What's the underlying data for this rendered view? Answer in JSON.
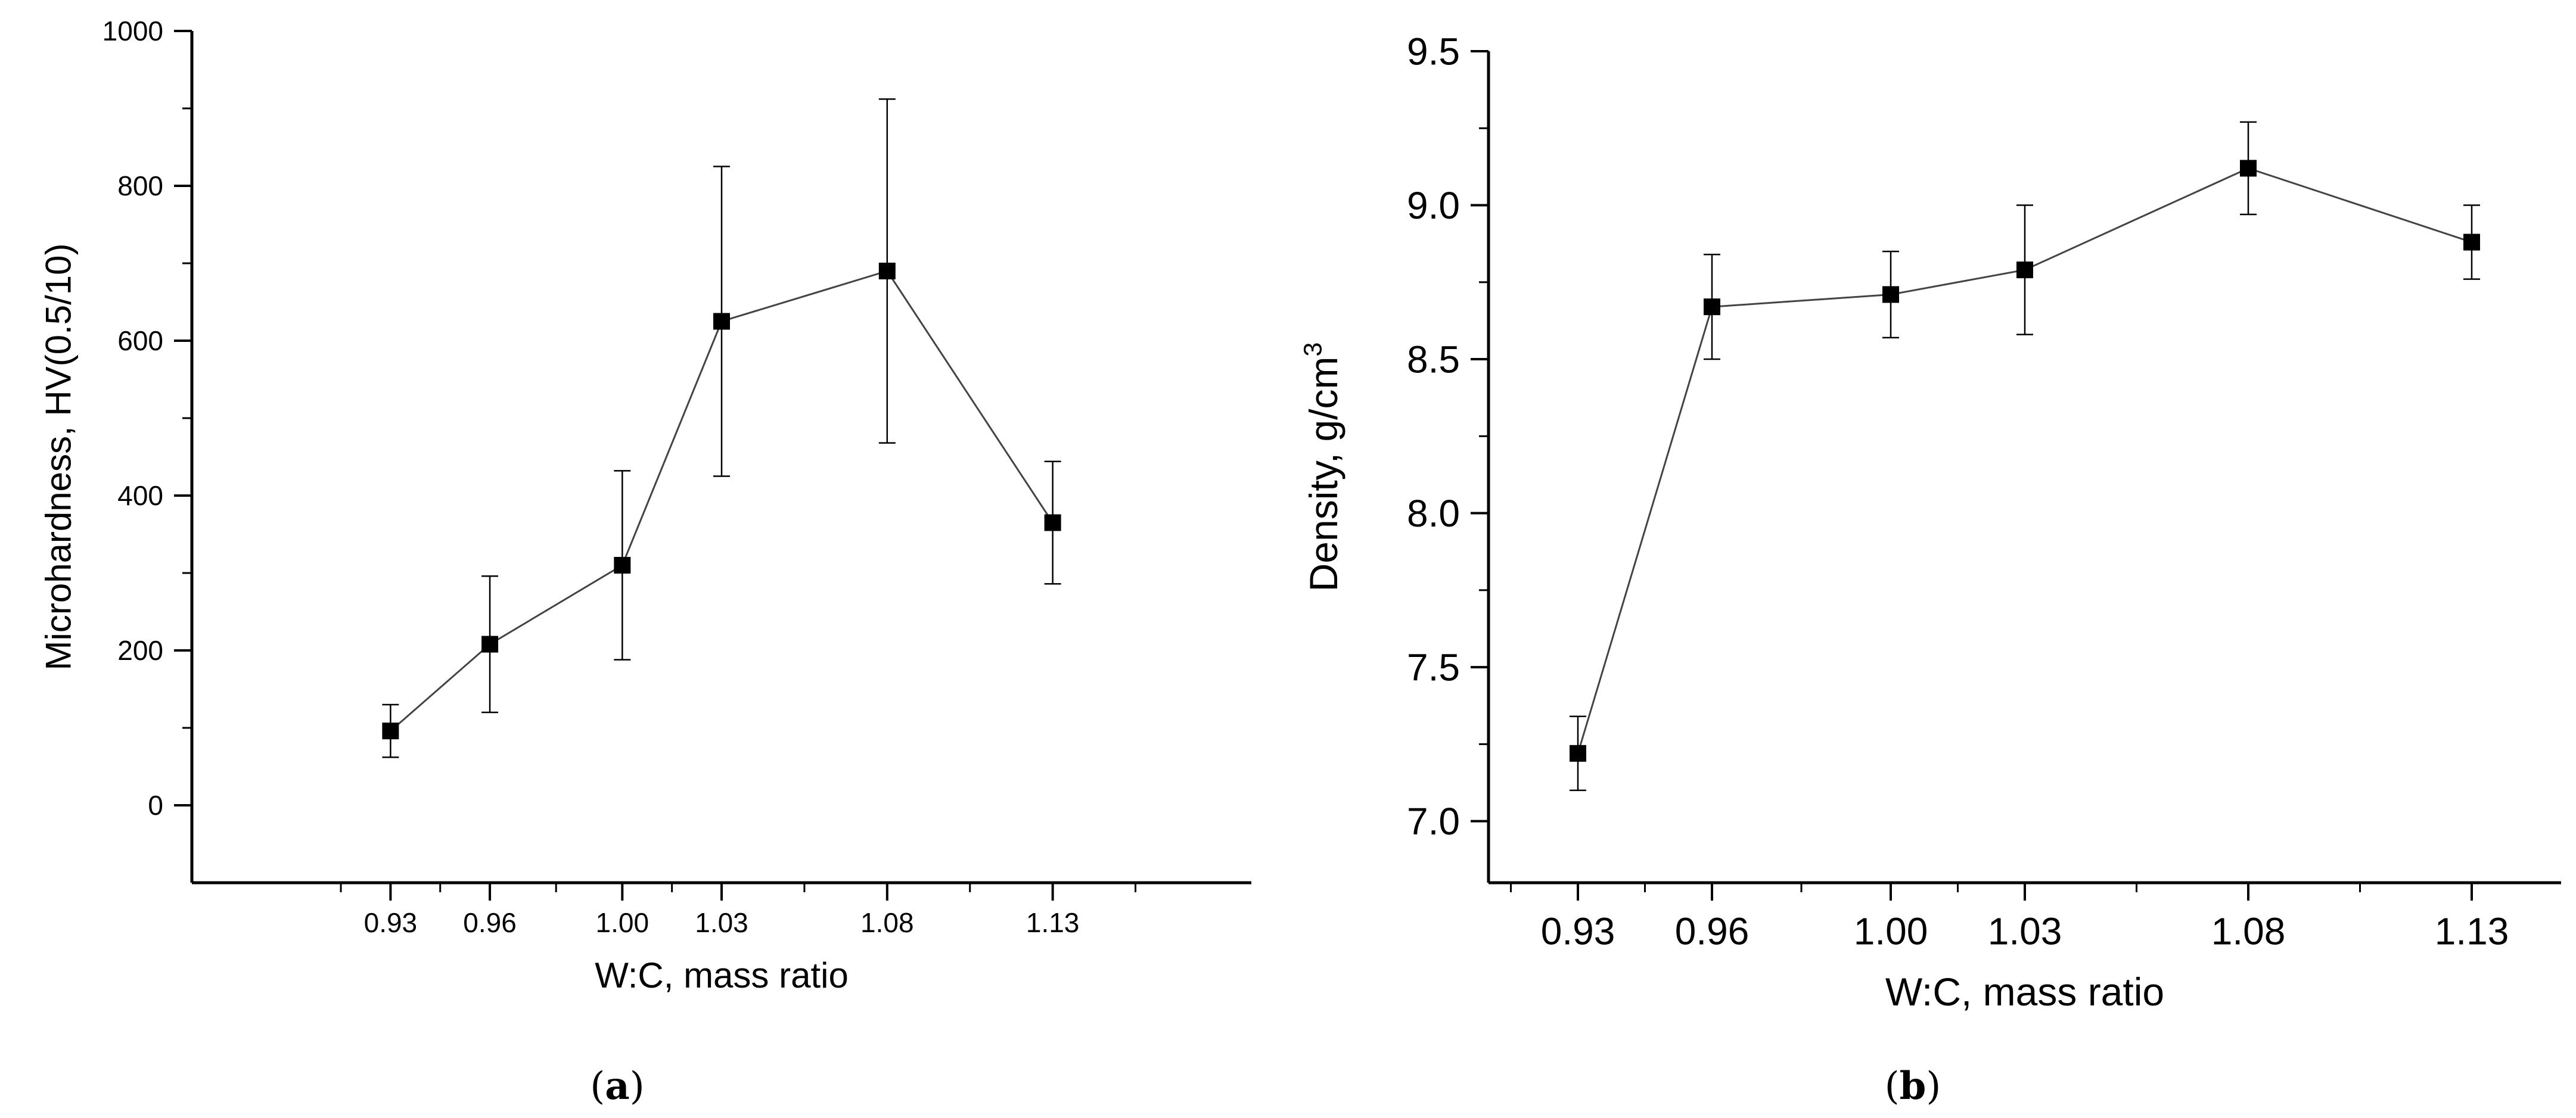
{
  "chart_data": [
    {
      "type": "line",
      "panel_label": "a",
      "xlabel": "W:C, mass ratio",
      "ylabel": "Microhardness, HV(0.5/10)",
      "categories": [
        "0.93",
        "0.96",
        "1.00",
        "1.03",
        "1.08",
        "1.13"
      ],
      "x": [
        0.93,
        0.96,
        1.0,
        1.03,
        1.08,
        1.13
      ],
      "values": [
        96,
        208,
        310,
        625,
        690,
        365
      ],
      "error": [
        34,
        88,
        122,
        200,
        222,
        79
      ],
      "xlim": [
        0.87,
        1.19
      ],
      "ylim": [
        -100,
        1000
      ],
      "yticks": [
        0,
        200,
        400,
        600,
        800,
        1000
      ],
      "grid": false,
      "marker": "square"
    },
    {
      "type": "line",
      "panel_label": "b",
      "xlabel": "W:C, mass ratio",
      "ylabel": "Density, g/cm",
      "ylabel_sup": "3",
      "categories": [
        "0.93",
        "0.96",
        "1.00",
        "1.03",
        "1.08",
        "1.13"
      ],
      "x": [
        0.93,
        0.96,
        1.0,
        1.03,
        1.08,
        1.13
      ],
      "values": [
        7.22,
        8.67,
        8.71,
        8.79,
        9.12,
        8.88
      ],
      "error": [
        0.12,
        0.17,
        0.14,
        0.21,
        0.15,
        0.12
      ],
      "xlim": [
        0.91,
        1.15
      ],
      "ylim": [
        6.8,
        9.5
      ],
      "yticks": [
        "7.0",
        "7.5",
        "8.0",
        "8.5",
        "9.0",
        "9.5"
      ],
      "grid": false,
      "marker": "square"
    }
  ]
}
